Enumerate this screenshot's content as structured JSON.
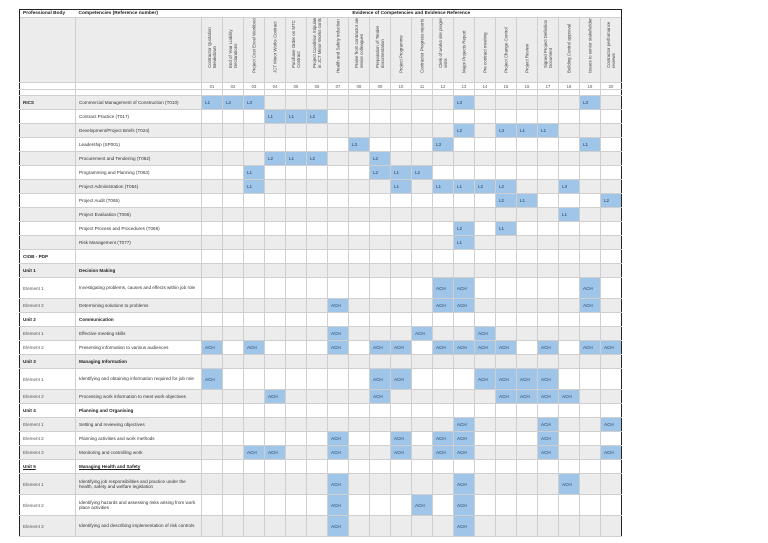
{
  "header": {
    "professional_body": "Professional Body",
    "competencies": "Competencies (Reference number)",
    "evidence_title": "Evidence of Competencies and Evidence Reference"
  },
  "evidence_columns": [
    {
      "num": "01",
      "label": "Contractor Quotation Breakdown"
    },
    {
      "num": "02",
      "label": "End of Year Liability Declarations"
    },
    {
      "num": "03",
      "label": "Project Cost Excel Workbook"
    },
    {
      "num": "04",
      "label": "JCT Minor Works Contract"
    },
    {
      "num": "05",
      "label": "Purchase Order on MTC Contract"
    },
    {
      "num": "06",
      "label": "Project Condition Stipulated in JCT Minor Works contract"
    },
    {
      "num": "07",
      "label": "Health and Safety induction"
    },
    {
      "num": "08",
      "label": "Praise from contractor and senior colleagues"
    },
    {
      "num": "09",
      "label": "Preparation of Tender documentation"
    },
    {
      "num": "10",
      "label": "Project Programme"
    },
    {
      "num": "11",
      "label": "Contractor Progress reports"
    },
    {
      "num": "12",
      "label": "Clerk of works site progress visits"
    },
    {
      "num": "13",
      "label": "Major Projects Report"
    },
    {
      "num": "14",
      "label": "Pre contract meeting"
    },
    {
      "num": "15",
      "label": "Project Change Control"
    },
    {
      "num": "16",
      "label": "Project Review"
    },
    {
      "num": "17",
      "label": "Signed Project Definition Document"
    },
    {
      "num": "18",
      "label": "Building Control approval"
    },
    {
      "num": "19",
      "label": "Issues to senior stakeholders"
    },
    {
      "num": "20",
      "label": "Contractor performance reviews"
    }
  ],
  "rows": [
    {
      "type": "row",
      "body": "RICS",
      "body_bold": true,
      "desc": "Commercial Management of Construction (T010)",
      "cells": {
        "1": "L1",
        "2": "L2",
        "3": "L3",
        "13": "L3",
        "19": "L3"
      }
    },
    {
      "type": "row",
      "body": "",
      "desc": "Contract Practice (T017)",
      "cells": {
        "4": "L1",
        "5": "L1",
        "6": "L2"
      }
    },
    {
      "type": "row",
      "body": "",
      "desc": "Development/Project Briefs (T024)",
      "cells": {
        "13": "L2",
        "15": "L3",
        "16": "L1",
        "17": "L1"
      }
    },
    {
      "type": "row",
      "body": "",
      "desc": "Leadership (SP001)",
      "cells": {
        "8": "L3",
        "12": "L3",
        "19": "L1"
      }
    },
    {
      "type": "row",
      "body": "",
      "desc": "Procurement and Tendering (T062)",
      "cells": {
        "4": "L2",
        "5": "L1",
        "6": "L2",
        "9": "L2"
      }
    },
    {
      "type": "row",
      "body": "",
      "desc": "Programming and Planning (T063)",
      "cells": {
        "3": "L1",
        "9": "L2",
        "10": "L1",
        "11": "L2"
      }
    },
    {
      "type": "row",
      "body": "",
      "desc": "Project Administration (T064)",
      "cells": {
        "3": "L1",
        "10": "L1",
        "12": "L1",
        "13": "L1",
        "14": "L2",
        "15": "L2",
        "18": "L3"
      }
    },
    {
      "type": "row",
      "body": "",
      "desc": "Project Audit (T065)",
      "cells": {
        "15": "L2",
        "16": "L1",
        "20": "L2"
      }
    },
    {
      "type": "row",
      "body": "",
      "desc": "Project Evaluation (T066)",
      "cells": {
        "18": "L1"
      }
    },
    {
      "type": "row",
      "body": "",
      "desc": "Project Process and Procedures (T068)",
      "cells": {
        "13": "L2",
        "15": "L1"
      }
    },
    {
      "type": "row",
      "body": "",
      "desc": "Risk Management (T077)",
      "cells": {
        "13": "L1"
      }
    },
    {
      "type": "row",
      "body": "CIOB - PDP",
      "body_bold": true,
      "desc": "",
      "cells": {}
    },
    {
      "type": "unit",
      "body": "Unit 1",
      "desc": "Decision Making",
      "cells": {}
    },
    {
      "type": "element",
      "tall": true,
      "body": "Element 1",
      "desc": "Investigating problems, causes and effects within job role",
      "cells": {
        "12": "ACH",
        "13": "ACH",
        "19": "ACH"
      }
    },
    {
      "type": "element",
      "body": "Element 2",
      "desc": "Determining solutions to problems",
      "cells": {
        "7": "ACH",
        "12": "ACH",
        "13": "ACH",
        "19": "ACH"
      }
    },
    {
      "type": "unit",
      "body": "Unit 2",
      "desc": "Communication",
      "cells": {}
    },
    {
      "type": "element",
      "body": "Element 1",
      "desc": "Effective meeting skills",
      "cells": {
        "7": "ACH",
        "11": "ACH",
        "14": "ACH"
      }
    },
    {
      "type": "element",
      "body": "Element 2",
      "desc": "Presenting information to various audiences",
      "cells": {
        "1": "ACH",
        "3": "ACH",
        "7": "ACH",
        "9": "ACH",
        "10": "ACH",
        "12": "ACH",
        "13": "ACH",
        "14": "ACH",
        "15": "ACH",
        "17": "ACH",
        "19": "ACH",
        "20": "ACH"
      }
    },
    {
      "type": "unit",
      "body": "Unit 3",
      "desc": "Managing Information",
      "cells": {}
    },
    {
      "type": "element",
      "tall": true,
      "body": "Element 1",
      "desc": "Identifying and obtaining information required for job role",
      "cells": {
        "1": "ACH",
        "9": "ACH",
        "10": "ACH",
        "14": "ACH",
        "15": "ACH",
        "16": "ACH",
        "17": "ACH"
      }
    },
    {
      "type": "element",
      "body": "Element 2",
      "desc": "Processing work information to meet work objectives",
      "cells": {
        "4": "ACH",
        "9": "ACH",
        "15": "ACH",
        "16": "ACH",
        "17": "ACH",
        "18": "ACH"
      }
    },
    {
      "type": "unit",
      "body": "Unit 4",
      "desc": "Planning and Organising",
      "cells": {}
    },
    {
      "type": "element",
      "body": "Element 1",
      "desc": "Setting and reviewing objectives",
      "cells": {
        "13": "ACH",
        "17": "ACH",
        "20": "ACH"
      }
    },
    {
      "type": "element",
      "body": "Element 2",
      "desc": "Planning activities and work methods",
      "cells": {
        "7": "ACH",
        "10": "ACH",
        "12": "ACH",
        "13": "ACH",
        "17": "ACH"
      }
    },
    {
      "type": "element",
      "body": "Element 3",
      "desc": "Monitoring and controlling work",
      "cells": {
        "3": "ACH",
        "4": "ACH",
        "7": "ACH",
        "10": "ACH",
        "12": "ACH",
        "13": "ACH",
        "17": "ACH",
        "20": "ACH"
      }
    },
    {
      "type": "unit",
      "underline": true,
      "body": "Unit 5",
      "desc": "Managing Health and Safety",
      "cells": {}
    },
    {
      "type": "element",
      "tall": true,
      "body": "Element 1",
      "desc": "Identifying job responsibilities and practice under the health, safety and welfare legislation",
      "cells": {
        "7": "ACH",
        "13": "ACH",
        "18": "ACH"
      }
    },
    {
      "type": "element",
      "tall": true,
      "body": "Element 2",
      "desc": "Identifying hazards and assessing risks arising from work place activities",
      "cells": {
        "7": "ACH",
        "11": "ACH",
        "13": "ACH"
      }
    },
    {
      "type": "element",
      "tall": true,
      "body": "Element 3",
      "desc": "Identifying and describing implementation of risk controls",
      "cells": {
        "7": "ACH",
        "13": "ACH"
      }
    }
  ],
  "colors": {
    "highlight": "#9fc5e8",
    "alt_row": "#ececec",
    "grid": "#cfcfcf"
  }
}
